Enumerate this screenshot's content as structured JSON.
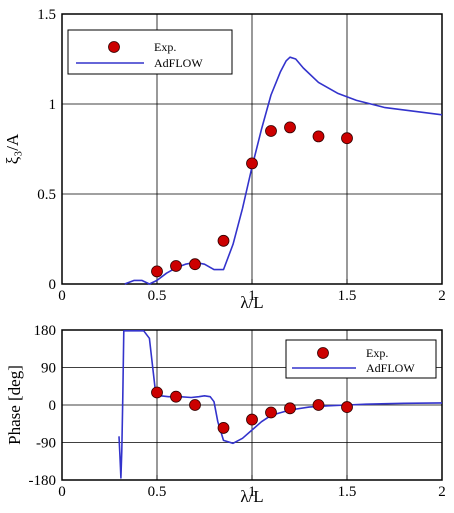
{
  "chart_data": [
    {
      "type": "line",
      "xlabel": "λ/L",
      "ylabel": "ξ₃/A",
      "xlim": [
        0,
        2
      ],
      "ylim": [
        0,
        1.5
      ],
      "xticks": [
        "0",
        "0.5",
        "1",
        "1.5",
        "2"
      ],
      "yticks": [
        "0",
        "0.5",
        "1",
        "1.5"
      ],
      "grid": true,
      "legend_position": "top-left",
      "series": [
        {
          "name": "Exp.",
          "style": "markers",
          "color": "#cc0000",
          "x": [
            0.5,
            0.6,
            0.7,
            0.85,
            1.0,
            1.1,
            1.2,
            1.35,
            1.5
          ],
          "y": [
            0.07,
            0.1,
            0.11,
            0.24,
            0.67,
            0.85,
            0.87,
            0.82,
            0.81
          ]
        },
        {
          "name": "AdFLOW",
          "style": "line",
          "color": "#3333cc",
          "x": [
            0.33,
            0.38,
            0.42,
            0.46,
            0.5,
            0.55,
            0.6,
            0.65,
            0.7,
            0.75,
            0.8,
            0.85,
            0.9,
            0.95,
            1.0,
            1.05,
            1.1,
            1.15,
            1.18,
            1.2,
            1.23,
            1.27,
            1.35,
            1.45,
            1.55,
            1.7,
            1.85,
            2.0
          ],
          "y": [
            0.0,
            0.02,
            0.02,
            0.0,
            0.02,
            0.06,
            0.09,
            0.11,
            0.12,
            0.11,
            0.08,
            0.08,
            0.22,
            0.42,
            0.65,
            0.86,
            1.05,
            1.18,
            1.24,
            1.26,
            1.25,
            1.2,
            1.12,
            1.06,
            1.02,
            0.98,
            0.96,
            0.94
          ]
        }
      ]
    },
    {
      "type": "line",
      "xlabel": "λ/L",
      "ylabel": "Phase [deg]",
      "xlim": [
        0,
        2
      ],
      "ylim": [
        -180,
        180
      ],
      "xticks": [
        "0",
        "0.5",
        "1",
        "1.5",
        "2"
      ],
      "yticks": [
        "-180",
        "-90",
        "0",
        "90",
        "180"
      ],
      "grid": true,
      "legend_position": "top-right",
      "series": [
        {
          "name": "Exp.",
          "style": "markers",
          "color": "#cc0000",
          "x": [
            0.5,
            0.6,
            0.7,
            0.85,
            1.0,
            1.1,
            1.2,
            1.35,
            1.5
          ],
          "y": [
            30,
            20,
            0,
            -55,
            -35,
            -18,
            -8,
            0,
            -5
          ]
        },
        {
          "name": "AdFLOW",
          "style": "line",
          "color": "#3333cc",
          "x": [
            0.3,
            0.305,
            0.31,
            0.315,
            0.32,
            0.325,
            0.33,
            0.34,
            0.38,
            0.43,
            0.46,
            0.48,
            0.49,
            0.5,
            0.52,
            0.56,
            0.62,
            0.68,
            0.72,
            0.75,
            0.78,
            0.8,
            0.82,
            0.85,
            0.9,
            0.95,
            1.0,
            1.05,
            1.1,
            1.2,
            1.3,
            1.4,
            1.5,
            1.6,
            1.8,
            2.0
          ],
          "y": [
            -75,
            -120,
            -175,
            -110,
            20,
            178,
            178,
            178,
            178,
            178,
            160,
            80,
            40,
            28,
            22,
            20,
            20,
            18,
            20,
            22,
            20,
            8,
            -40,
            -85,
            -92,
            -80,
            -60,
            -40,
            -25,
            -12,
            -5,
            -2,
            0,
            2,
            4,
            5
          ]
        }
      ]
    }
  ]
}
